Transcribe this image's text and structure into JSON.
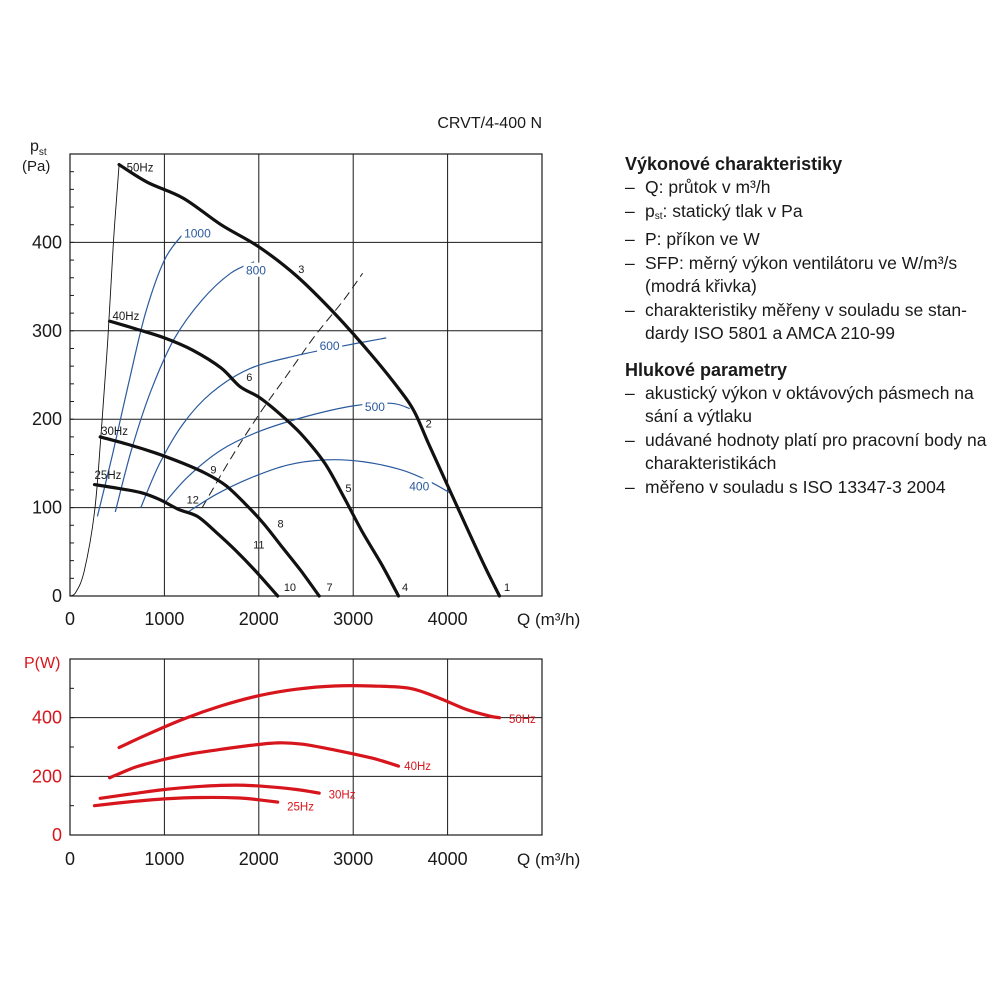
{
  "chart_data": [
    {
      "type": "line",
      "title": "CRVT/4-400 N",
      "ylabel_main": "p",
      "ylabel_sub": "st",
      "yunit": "(Pa)",
      "xlabel": "Q (m³/h)",
      "xlim": [
        0,
        5000
      ],
      "ylim": [
        0,
        500
      ],
      "x_ticks": [
        0,
        1000,
        2000,
        3000,
        4000
      ],
      "y_ticks": [
        0,
        100,
        200,
        300,
        400
      ],
      "grid": true,
      "colors": {
        "fan_curve": "#111111",
        "sfp_curve": "#2a5a9e",
        "system_curve": "#111111"
      },
      "series": [
        {
          "name": "50Hz",
          "kind": "fan",
          "points": [
            [
              520,
              488
            ],
            [
              820,
              468
            ],
            [
              1200,
              450
            ],
            [
              1600,
              420
            ],
            [
              2000,
              395
            ],
            [
              2400,
              362
            ],
            [
              2800,
              320
            ],
            [
              3200,
              272
            ],
            [
              3500,
              232
            ],
            [
              3650,
              208
            ],
            [
              3800,
              172
            ],
            [
              4000,
              125
            ],
            [
              4200,
              78
            ],
            [
              4400,
              32
            ],
            [
              4550,
              0
            ]
          ]
        },
        {
          "name": "40Hz",
          "kind": "fan",
          "points": [
            [
              420,
              311
            ],
            [
              700,
              302
            ],
            [
              1000,
              292
            ],
            [
              1300,
              278
            ],
            [
              1600,
              258
            ],
            [
              1800,
              237
            ],
            [
              2000,
              225
            ],
            [
              2200,
              208
            ],
            [
              2450,
              183
            ],
            [
              2700,
              150
            ],
            [
              2900,
              112
            ],
            [
              3100,
              72
            ],
            [
              3300,
              36
            ],
            [
              3480,
              0
            ]
          ]
        },
        {
          "name": "30Hz",
          "kind": "fan",
          "points": [
            [
              320,
              180
            ],
            [
              600,
              172
            ],
            [
              900,
              162
            ],
            [
              1200,
              150
            ],
            [
              1450,
              138
            ],
            [
              1650,
              125
            ],
            [
              1850,
              105
            ],
            [
              2050,
              82
            ],
            [
              2250,
              55
            ],
            [
              2450,
              28
            ],
            [
              2640,
              0
            ]
          ]
        },
        {
          "name": "25Hz",
          "kind": "fan",
          "points": [
            [
              260,
              126
            ],
            [
              500,
              122
            ],
            [
              750,
              117
            ],
            [
              950,
              109
            ],
            [
              1150,
              98
            ],
            [
              1350,
              90
            ],
            [
              1550,
              72
            ],
            [
              1750,
              52
            ],
            [
              1950,
              30
            ],
            [
              2200,
              0
            ]
          ]
        },
        {
          "name": "1000",
          "kind": "sfp",
          "points": [
            [
              290,
              90
            ],
            [
              450,
              160
            ],
            [
              620,
              240
            ],
            [
              800,
              320
            ],
            [
              1000,
              380
            ],
            [
              1200,
              410
            ]
          ]
        },
        {
          "name": "800",
          "kind": "sfp",
          "points": [
            [
              480,
              95
            ],
            [
              650,
              165
            ],
            [
              850,
              230
            ],
            [
              1100,
              290
            ],
            [
              1400,
              335
            ],
            [
              1700,
              365
            ],
            [
              1950,
              378
            ]
          ]
        },
        {
          "name": "600",
          "kind": "sfp",
          "points": [
            [
              750,
              100
            ],
            [
              950,
              150
            ],
            [
              1200,
              195
            ],
            [
              1500,
              230
            ],
            [
              1900,
              257
            ],
            [
              2400,
              272
            ],
            [
              2900,
              283
            ],
            [
              3350,
              292
            ]
          ]
        },
        {
          "name": "500",
          "kind": "sfp",
          "points": [
            [
              1000,
              105
            ],
            [
              1250,
              135
            ],
            [
              1600,
              165
            ],
            [
              2000,
              186
            ],
            [
              2500,
              203
            ],
            [
              3000,
              215
            ],
            [
              3400,
              218
            ],
            [
              3600,
              212
            ]
          ]
        },
        {
          "name": "400",
          "kind": "sfp",
          "points": [
            [
              1250,
              95
            ],
            [
              1550,
              115
            ],
            [
              1900,
              133
            ],
            [
              2300,
              148
            ],
            [
              2700,
              154
            ],
            [
              3100,
              152
            ],
            [
              3500,
              143
            ],
            [
              3800,
              130
            ],
            [
              4050,
              115
            ]
          ]
        }
      ],
      "system_curve": [
        [
          0,
          0
        ],
        [
          60,
          4
        ],
        [
          150,
          28
        ],
        [
          260,
          95
        ],
        [
          330,
          185
        ],
        [
          400,
          290
        ],
        [
          460,
          400
        ],
        [
          520,
          488
        ]
      ],
      "dashed_curve": [
        [
          1400,
          100
        ],
        [
          1700,
          155
        ],
        [
          2000,
          205
        ],
        [
          2300,
          250
        ],
        [
          2600,
          295
        ],
        [
          2900,
          335
        ],
        [
          3100,
          365
        ]
      ],
      "curve_labels": [
        {
          "text": "50Hz",
          "x": 600,
          "y": 478
        },
        {
          "text": "40Hz",
          "x": 450,
          "y": 310
        },
        {
          "text": "30Hz",
          "x": 330,
          "y": 180
        },
        {
          "text": "25Hz",
          "x": 260,
          "y": 130
        }
      ],
      "point_labels": [
        {
          "text": "1",
          "x": 4630,
          "y": 10
        },
        {
          "text": "2",
          "x": 3800,
          "y": 195
        },
        {
          "text": "3",
          "x": 2450,
          "y": 370
        },
        {
          "text": "4",
          "x": 3550,
          "y": 10
        },
        {
          "text": "5",
          "x": 2950,
          "y": 122
        },
        {
          "text": "6",
          "x": 1900,
          "y": 248
        },
        {
          "text": "7",
          "x": 2750,
          "y": 10
        },
        {
          "text": "8",
          "x": 2230,
          "y": 82
        },
        {
          "text": "9",
          "x": 1520,
          "y": 143
        },
        {
          "text": "10",
          "x": 2330,
          "y": 10
        },
        {
          "text": "11",
          "x": 2000,
          "y": 58
        },
        {
          "text": "12",
          "x": 1300,
          "y": 109
        }
      ],
      "sfp_labels": [
        {
          "text": "1000",
          "x": 1350,
          "y": 410
        },
        {
          "text": "800",
          "x": 1970,
          "y": 368
        },
        {
          "text": "600",
          "x": 2750,
          "y": 283
        },
        {
          "text": "500",
          "x": 3230,
          "y": 214
        },
        {
          "text": "400",
          "x": 3700,
          "y": 124
        }
      ]
    },
    {
      "type": "line",
      "ylabel": "P(W)",
      "xlabel": "Q (m³/h)",
      "xlim": [
        0,
        5000
      ],
      "ylim": [
        0,
        600
      ],
      "x_ticks": [
        0,
        1000,
        2000,
        3000,
        4000
      ],
      "y_ticks": [
        0,
        200,
        400
      ],
      "grid": true,
      "colors": {
        "power_curve": "#d7151c",
        "axis_label": "#d7151c"
      },
      "series": [
        {
          "name": "50Hz",
          "points": [
            [
              520,
              298
            ],
            [
              800,
              340
            ],
            [
              1200,
              395
            ],
            [
              1600,
              440
            ],
            [
              2000,
              475
            ],
            [
              2400,
              497
            ],
            [
              2800,
              508
            ],
            [
              3200,
              508
            ],
            [
              3600,
              500
            ],
            [
              3900,
              468
            ],
            [
              4200,
              428
            ],
            [
              4450,
              405
            ],
            [
              4550,
              400
            ]
          ]
        },
        {
          "name": "40Hz",
          "points": [
            [
              420,
              195
            ],
            [
              700,
              232
            ],
            [
              1000,
              258
            ],
            [
              1300,
              278
            ],
            [
              1600,
              292
            ],
            [
              1900,
              305
            ],
            [
              2200,
              314
            ],
            [
              2450,
              310
            ],
            [
              2800,
              290
            ],
            [
              3200,
              262
            ],
            [
              3480,
              235
            ]
          ]
        },
        {
          "name": "30Hz",
          "points": [
            [
              320,
              125
            ],
            [
              650,
              140
            ],
            [
              1000,
              155
            ],
            [
              1400,
              166
            ],
            [
              1750,
              170
            ],
            [
              2050,
              166
            ],
            [
              2400,
              155
            ],
            [
              2640,
              143
            ]
          ]
        },
        {
          "name": "25Hz",
          "points": [
            [
              260,
              100
            ],
            [
              600,
              112
            ],
            [
              1000,
              123
            ],
            [
              1400,
              128
            ],
            [
              1800,
              126
            ],
            [
              2000,
              120
            ],
            [
              2200,
              112
            ]
          ]
        }
      ],
      "curve_labels": [
        {
          "text": "50Hz",
          "x": 4650,
          "y": 395
        },
        {
          "text": "40Hz",
          "x": 3540,
          "y": 235
        },
        {
          "text": "30Hz",
          "x": 2740,
          "y": 138
        },
        {
          "text": "25Hz",
          "x": 2300,
          "y": 98
        }
      ]
    }
  ],
  "info": {
    "sections": [
      {
        "heading": "Výkonové charakteristiky",
        "items": [
          {
            "text": "Q: průtok v m³/h"
          },
          {
            "prefix": "p",
            "sub": "st",
            "text": ": statický tlak v Pa"
          },
          {
            "text": "P: příkon ve W"
          },
          {
            "text": "SFP: měrný výkon ventilátoru ve W/m³/s (modrá křivka)"
          },
          {
            "text": "charakteristiky měřeny v souladu se stan-dardy ISO 5801 a AMCA 210-99"
          }
        ]
      },
      {
        "heading": "Hlukové parametry",
        "items": [
          {
            "text": "akustický výkon v oktávových pásmech na sání a výtlaku"
          },
          {
            "text": "udávané hodnoty platí pro pracovní body na charakteristikách"
          },
          {
            "text": "měřeno v souladu s ISO 13347-3 2004"
          }
        ]
      }
    ]
  }
}
